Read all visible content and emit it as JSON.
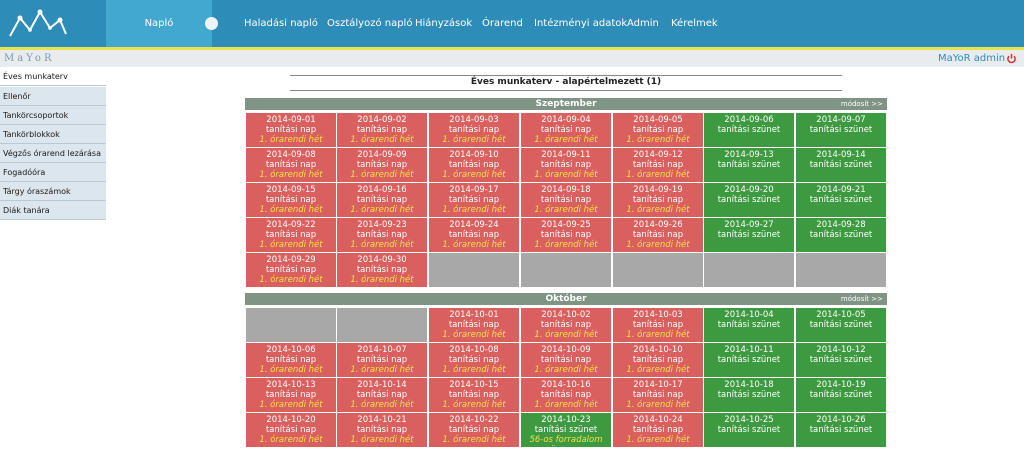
{
  "header": {
    "logo_icon": "mayor-logo-icon",
    "nav": [
      {
        "label": "Napló",
        "active": true
      },
      {
        "label": "Haladási napló"
      },
      {
        "label": "Osztályozó napló"
      },
      {
        "label": "Hiányzások"
      },
      {
        "label": "Órarend"
      },
      {
        "label": "Intézményi adatok"
      },
      {
        "label": "Admin"
      },
      {
        "label": "Kérelmek"
      }
    ],
    "brand": "MaYoR",
    "user": "MaYoR admin",
    "logout_icon": "power-icon"
  },
  "sidebar": {
    "items": [
      {
        "label": "Éves munkaterv",
        "active": true
      },
      {
        "label": "Ellenőr"
      },
      {
        "label": "Tankörcsoportok"
      },
      {
        "label": "Tankörblokkok"
      },
      {
        "label": "Végzős órarend lezárása"
      },
      {
        "label": "Fogadóóra"
      },
      {
        "label": "Tárgy óraszámok"
      },
      {
        "label": "Diák tanára"
      }
    ]
  },
  "main": {
    "title": "Éves munkaterv - alapértelmezett (1)",
    "modify_label": "módosít >>",
    "months": [
      {
        "name": "Szeptember",
        "weeks": [
          [
            {
              "date": "2014-09-01",
              "type": "tanítási nap",
              "note": "1. órarendi hét",
              "kind": "school"
            },
            {
              "date": "2014-09-02",
              "type": "tanítási nap",
              "note": "1. órarendi hét",
              "kind": "school"
            },
            {
              "date": "2014-09-03",
              "type": "tanítási nap",
              "note": "1. órarendi hét",
              "kind": "school"
            },
            {
              "date": "2014-09-04",
              "type": "tanítási nap",
              "note": "1. órarendi hét",
              "kind": "school"
            },
            {
              "date": "2014-09-05",
              "type": "tanítási nap",
              "note": "1. órarendi hét",
              "kind": "school"
            },
            {
              "date": "2014-09-06",
              "type": "tanítási szünet",
              "note": "",
              "kind": "holiday"
            },
            {
              "date": "2014-09-07",
              "type": "tanítási szünet",
              "note": "",
              "kind": "holiday"
            }
          ],
          [
            {
              "date": "2014-09-08",
              "type": "tanítási nap",
              "note": "1. órarendi hét",
              "kind": "school"
            },
            {
              "date": "2014-09-09",
              "type": "tanítási nap",
              "note": "1. órarendi hét",
              "kind": "school"
            },
            {
              "date": "2014-09-10",
              "type": "tanítási nap",
              "note": "1. órarendi hét",
              "kind": "school"
            },
            {
              "date": "2014-09-11",
              "type": "tanítási nap",
              "note": "1. órarendi hét",
              "kind": "school"
            },
            {
              "date": "2014-09-12",
              "type": "tanítási nap",
              "note": "1. órarendi hét",
              "kind": "school"
            },
            {
              "date": "2014-09-13",
              "type": "tanítási szünet",
              "note": "",
              "kind": "holiday"
            },
            {
              "date": "2014-09-14",
              "type": "tanítási szünet",
              "note": "",
              "kind": "holiday"
            }
          ],
          [
            {
              "date": "2014-09-15",
              "type": "tanítási nap",
              "note": "1. órarendi hét",
              "kind": "school"
            },
            {
              "date": "2014-09-16",
              "type": "tanítási nap",
              "note": "1. órarendi hét",
              "kind": "school"
            },
            {
              "date": "2014-09-17",
              "type": "tanítási nap",
              "note": "1. órarendi hét",
              "kind": "school"
            },
            {
              "date": "2014-09-18",
              "type": "tanítási nap",
              "note": "1. órarendi hét",
              "kind": "school"
            },
            {
              "date": "2014-09-19",
              "type": "tanítási nap",
              "note": "1. órarendi hét",
              "kind": "school"
            },
            {
              "date": "2014-09-20",
              "type": "tanítási szünet",
              "note": "",
              "kind": "holiday"
            },
            {
              "date": "2014-09-21",
              "type": "tanítási szünet",
              "note": "",
              "kind": "holiday"
            }
          ],
          [
            {
              "date": "2014-09-22",
              "type": "tanítási nap",
              "note": "1. órarendi hét",
              "kind": "school"
            },
            {
              "date": "2014-09-23",
              "type": "tanítási nap",
              "note": "1. órarendi hét",
              "kind": "school"
            },
            {
              "date": "2014-09-24",
              "type": "tanítási nap",
              "note": "1. órarendi hét",
              "kind": "school"
            },
            {
              "date": "2014-09-25",
              "type": "tanítási nap",
              "note": "1. órarendi hét",
              "kind": "school"
            },
            {
              "date": "2014-09-26",
              "type": "tanítási nap",
              "note": "1. órarendi hét",
              "kind": "school"
            },
            {
              "date": "2014-09-27",
              "type": "tanítási szünet",
              "note": "",
              "kind": "holiday"
            },
            {
              "date": "2014-09-28",
              "type": "tanítási szünet",
              "note": "",
              "kind": "holiday"
            }
          ],
          [
            {
              "date": "2014-09-29",
              "type": "tanítási nap",
              "note": "1. órarendi hét",
              "kind": "school"
            },
            {
              "date": "2014-09-30",
              "type": "tanítási nap",
              "note": "1. órarendi hét",
              "kind": "school"
            },
            {
              "kind": "empty"
            },
            {
              "kind": "empty"
            },
            {
              "kind": "empty"
            },
            {
              "kind": "empty"
            },
            {
              "kind": "empty"
            }
          ]
        ]
      },
      {
        "name": "Október",
        "weeks": [
          [
            {
              "kind": "empty"
            },
            {
              "kind": "empty"
            },
            {
              "date": "2014-10-01",
              "type": "tanítási nap",
              "note": "1. órarendi hét",
              "kind": "school"
            },
            {
              "date": "2014-10-02",
              "type": "tanítási nap",
              "note": "1. órarendi hét",
              "kind": "school"
            },
            {
              "date": "2014-10-03",
              "type": "tanítási nap",
              "note": "1. órarendi hét",
              "kind": "school"
            },
            {
              "date": "2014-10-04",
              "type": "tanítási szünet",
              "note": "",
              "kind": "holiday"
            },
            {
              "date": "2014-10-05",
              "type": "tanítási szünet",
              "note": "",
              "kind": "holiday"
            }
          ],
          [
            {
              "date": "2014-10-06",
              "type": "tanítási nap",
              "note": "1. órarendi hét",
              "kind": "school"
            },
            {
              "date": "2014-10-07",
              "type": "tanítási nap",
              "note": "1. órarendi hét",
              "kind": "school"
            },
            {
              "date": "2014-10-08",
              "type": "tanítási nap",
              "note": "1. órarendi hét",
              "kind": "school"
            },
            {
              "date": "2014-10-09",
              "type": "tanítási nap",
              "note": "1. órarendi hét",
              "kind": "school"
            },
            {
              "date": "2014-10-10",
              "type": "tanítási nap",
              "note": "1. órarendi hét",
              "kind": "school"
            },
            {
              "date": "2014-10-11",
              "type": "tanítási szünet",
              "note": "",
              "kind": "holiday"
            },
            {
              "date": "2014-10-12",
              "type": "tanítási szünet",
              "note": "",
              "kind": "holiday"
            }
          ],
          [
            {
              "date": "2014-10-13",
              "type": "tanítási nap",
              "note": "1. órarendi hét",
              "kind": "school"
            },
            {
              "date": "2014-10-14",
              "type": "tanítási nap",
              "note": "1. órarendi hét",
              "kind": "school"
            },
            {
              "date": "2014-10-15",
              "type": "tanítási nap",
              "note": "1. órarendi hét",
              "kind": "school"
            },
            {
              "date": "2014-10-16",
              "type": "tanítási nap",
              "note": "1. órarendi hét",
              "kind": "school"
            },
            {
              "date": "2014-10-17",
              "type": "tanítási nap",
              "note": "1. órarendi hét",
              "kind": "school"
            },
            {
              "date": "2014-10-18",
              "type": "tanítási szünet",
              "note": "",
              "kind": "holiday"
            },
            {
              "date": "2014-10-19",
              "type": "tanítási szünet",
              "note": "",
              "kind": "holiday"
            }
          ],
          [
            {
              "date": "2014-10-20",
              "type": "tanítási nap",
              "note": "1. órarendi hét",
              "kind": "school"
            },
            {
              "date": "2014-10-21",
              "type": "tanítási nap",
              "note": "1. órarendi hét",
              "kind": "school"
            },
            {
              "date": "2014-10-22",
              "type": "tanítási nap",
              "note": "1. órarendi hét",
              "kind": "school"
            },
            {
              "date": "2014-10-23",
              "type": "tanítási szünet",
              "note": "56-os forradalom ünnepe",
              "kind": "special"
            },
            {
              "date": "2014-10-24",
              "type": "tanítási nap",
              "note": "1. órarendi hét",
              "kind": "school"
            },
            {
              "date": "2014-10-25",
              "type": "tanítási szünet",
              "note": "",
              "kind": "holiday"
            },
            {
              "date": "2014-10-26",
              "type": "tanítási szünet",
              "note": "",
              "kind": "holiday"
            }
          ]
        ]
      }
    ]
  }
}
